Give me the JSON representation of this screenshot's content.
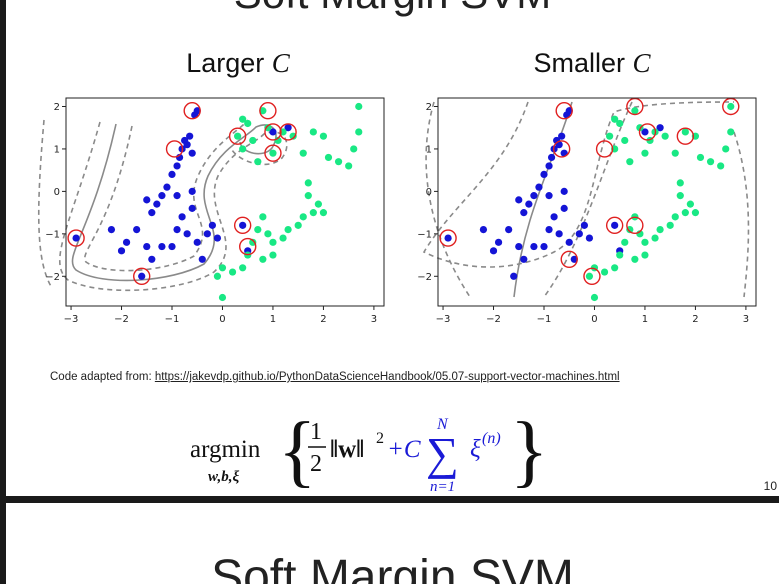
{
  "prev_title": "Soft Margin SVM",
  "panels": [
    {
      "title_text": "Larger ",
      "title_var": "C"
    },
    {
      "title_text": "Smaller ",
      "title_var": "C"
    }
  ],
  "credit": {
    "prefix": "Code adapted from: ",
    "link": "https://jakevdp.github.io/PythonDataScienceHandbook/05.07-support-vector-machines.html"
  },
  "formula": {
    "op": "argmin",
    "sub": "w,b,ξ",
    "frac_num": "1",
    "frac_den": "2",
    "norm": "‖w‖",
    "exp": "2",
    "plus_c": "+C",
    "sum_upper": "N",
    "sum_lower": "n=1",
    "xi": "ξ",
    "xi_sup": "(n)"
  },
  "page_number": "10",
  "next_title": "Soft Margin SVM",
  "colors": {
    "class_a": "#1414d6",
    "class_b": "#19e884",
    "support": "#e02020",
    "boundary": "#8a8a8a",
    "accent": "#1a1ad6"
  },
  "chart_data": [
    {
      "type": "scatter",
      "title": "Larger C",
      "xlim": [
        -3.1,
        3.2
      ],
      "ylim": [
        -2.7,
        2.2
      ],
      "xticks": [
        -3,
        -2,
        -1,
        0,
        1,
        2,
        3
      ],
      "yticks": [
        -2,
        -1,
        0,
        1,
        2
      ],
      "series": [
        {
          "values": [
            [
              -2.9,
              -1.1
            ],
            [
              -2.2,
              -0.9
            ],
            [
              -2.0,
              -1.4
            ],
            [
              -1.9,
              -1.2
            ],
            [
              -1.7,
              -0.9
            ],
            [
              -1.6,
              -2.0
            ],
            [
              -1.5,
              -1.3
            ],
            [
              -1.4,
              -0.5
            ],
            [
              -1.3,
              -0.3
            ],
            [
              -1.2,
              -0.1
            ],
            [
              -1.1,
              0.1
            ],
            [
              -1.0,
              0.4
            ],
            [
              -0.9,
              0.6
            ],
            [
              -0.85,
              0.8
            ],
            [
              -0.8,
              1.0
            ],
            [
              -0.75,
              1.2
            ],
            [
              -0.7,
              1.1
            ],
            [
              -0.65,
              1.3
            ],
            [
              -0.6,
              0.9
            ],
            [
              -0.55,
              1.8
            ],
            [
              -0.5,
              1.9
            ],
            [
              -1.5,
              -0.2
            ],
            [
              -1.2,
              -1.3
            ],
            [
              -1.0,
              -1.3
            ],
            [
              -0.9,
              -0.9
            ],
            [
              -0.8,
              -0.6
            ],
            [
              -0.7,
              -1.0
            ],
            [
              -0.6,
              -0.4
            ],
            [
              -0.5,
              -1.2
            ],
            [
              -0.4,
              -1.6
            ],
            [
              -0.3,
              -1.0
            ],
            [
              -0.2,
              -0.8
            ],
            [
              -0.1,
              -1.1
            ],
            [
              0.4,
              -0.8
            ],
            [
              0.5,
              -1.4
            ],
            [
              1.0,
              1.4
            ],
            [
              1.3,
              1.5
            ],
            [
              -0.9,
              -0.1
            ],
            [
              -0.6,
              0.0
            ],
            [
              -1.4,
              -1.6
            ]
          ]
        },
        {
          "values": [
            [
              0.3,
              1.3
            ],
            [
              0.4,
              1.0
            ],
            [
              0.6,
              1.2
            ],
            [
              0.7,
              0.7
            ],
            [
              0.8,
              1.9
            ],
            [
              0.9,
              1.5
            ],
            [
              1.0,
              0.9
            ],
            [
              1.1,
              1.2
            ],
            [
              1.2,
              1.4
            ],
            [
              1.4,
              1.3
            ],
            [
              1.6,
              0.9
            ],
            [
              1.8,
              1.4
            ],
            [
              2.0,
              1.3
            ],
            [
              2.1,
              0.8
            ],
            [
              2.3,
              0.7
            ],
            [
              2.5,
              0.6
            ],
            [
              2.6,
              1.0
            ],
            [
              2.7,
              1.4
            ],
            [
              2.7,
              2.0
            ],
            [
              1.7,
              0.2
            ],
            [
              1.7,
              -0.1
            ],
            [
              1.9,
              -0.3
            ],
            [
              2.0,
              -0.5
            ],
            [
              1.8,
              -0.5
            ],
            [
              1.6,
              -0.6
            ],
            [
              1.5,
              -0.8
            ],
            [
              1.3,
              -0.9
            ],
            [
              1.2,
              -1.1
            ],
            [
              1.0,
              -1.2
            ],
            [
              0.9,
              -1.0
            ],
            [
              0.8,
              -0.6
            ],
            [
              0.7,
              -0.9
            ],
            [
              0.6,
              -1.2
            ],
            [
              0.5,
              -1.5
            ],
            [
              0.4,
              -1.8
            ],
            [
              0.2,
              -1.9
            ],
            [
              0.0,
              -1.8
            ],
            [
              -0.1,
              -2.0
            ],
            [
              0.0,
              -2.5
            ],
            [
              1.0,
              -1.5
            ],
            [
              0.8,
              -1.6
            ],
            [
              0.5,
              1.6
            ],
            [
              0.4,
              1.7
            ]
          ]
        }
      ],
      "support_vectors": [
        [
          -2.9,
          -1.1
        ],
        [
          -1.6,
          -2.0
        ],
        [
          -0.6,
          1.9
        ],
        [
          -0.95,
          1.0
        ],
        [
          0.4,
          -0.8
        ],
        [
          0.5,
          -1.3
        ],
        [
          0.3,
          1.3
        ],
        [
          0.9,
          1.9
        ],
        [
          1.0,
          1.4
        ],
        [
          1.3,
          1.4
        ],
        [
          1.0,
          0.9
        ]
      ]
    },
    {
      "type": "scatter",
      "title": "Smaller C",
      "xlim": [
        -3.1,
        3.2
      ],
      "ylim": [
        -2.7,
        2.2
      ],
      "xticks": [
        -3,
        -2,
        -1,
        0,
        1,
        2,
        3
      ],
      "yticks": [
        -2,
        -1,
        0,
        1,
        2
      ],
      "series": [
        {
          "values": [
            [
              -2.9,
              -1.1
            ],
            [
              -2.2,
              -0.9
            ],
            [
              -2.0,
              -1.4
            ],
            [
              -1.9,
              -1.2
            ],
            [
              -1.7,
              -0.9
            ],
            [
              -1.6,
              -2.0
            ],
            [
              -1.5,
              -1.3
            ],
            [
              -1.4,
              -0.5
            ],
            [
              -1.3,
              -0.3
            ],
            [
              -1.2,
              -0.1
            ],
            [
              -1.1,
              0.1
            ],
            [
              -1.0,
              0.4
            ],
            [
              -0.9,
              0.6
            ],
            [
              -0.85,
              0.8
            ],
            [
              -0.8,
              1.0
            ],
            [
              -0.75,
              1.2
            ],
            [
              -0.7,
              1.1
            ],
            [
              -0.65,
              1.3
            ],
            [
              -0.6,
              0.9
            ],
            [
              -0.55,
              1.8
            ],
            [
              -0.5,
              1.9
            ],
            [
              -1.5,
              -0.2
            ],
            [
              -1.2,
              -1.3
            ],
            [
              -1.0,
              -1.3
            ],
            [
              -0.9,
              -0.9
            ],
            [
              -0.8,
              -0.6
            ],
            [
              -0.7,
              -1.0
            ],
            [
              -0.6,
              -0.4
            ],
            [
              -0.5,
              -1.2
            ],
            [
              -0.4,
              -1.6
            ],
            [
              -0.3,
              -1.0
            ],
            [
              -0.2,
              -0.8
            ],
            [
              -0.1,
              -1.1
            ],
            [
              0.4,
              -0.8
            ],
            [
              0.5,
              -1.4
            ],
            [
              1.0,
              1.4
            ],
            [
              1.3,
              1.5
            ],
            [
              -0.9,
              -0.1
            ],
            [
              -0.6,
              0.0
            ],
            [
              -1.4,
              -1.6
            ]
          ]
        },
        {
          "values": [
            [
              0.3,
              1.3
            ],
            [
              0.4,
              1.0
            ],
            [
              0.6,
              1.2
            ],
            [
              0.7,
              0.7
            ],
            [
              0.8,
              1.9
            ],
            [
              0.9,
              1.5
            ],
            [
              1.0,
              0.9
            ],
            [
              1.1,
              1.2
            ],
            [
              1.2,
              1.4
            ],
            [
              1.4,
              1.3
            ],
            [
              1.6,
              0.9
            ],
            [
              1.8,
              1.4
            ],
            [
              2.0,
              1.3
            ],
            [
              2.1,
              0.8
            ],
            [
              2.3,
              0.7
            ],
            [
              2.5,
              0.6
            ],
            [
              2.6,
              1.0
            ],
            [
              2.7,
              1.4
            ],
            [
              2.7,
              2.0
            ],
            [
              1.7,
              0.2
            ],
            [
              1.7,
              -0.1
            ],
            [
              1.9,
              -0.3
            ],
            [
              2.0,
              -0.5
            ],
            [
              1.8,
              -0.5
            ],
            [
              1.6,
              -0.6
            ],
            [
              1.5,
              -0.8
            ],
            [
              1.3,
              -0.9
            ],
            [
              1.2,
              -1.1
            ],
            [
              1.0,
              -1.2
            ],
            [
              0.9,
              -1.0
            ],
            [
              0.8,
              -0.6
            ],
            [
              0.7,
              -0.9
            ],
            [
              0.6,
              -1.2
            ],
            [
              0.5,
              -1.5
            ],
            [
              0.4,
              -1.8
            ],
            [
              0.2,
              -1.9
            ],
            [
              0.0,
              -1.8
            ],
            [
              -0.1,
              -2.0
            ],
            [
              0.0,
              -2.5
            ],
            [
              1.0,
              -1.5
            ],
            [
              0.8,
              -1.6
            ],
            [
              0.5,
              1.6
            ],
            [
              0.4,
              1.7
            ]
          ]
        }
      ],
      "support_vectors": [
        [
          -2.9,
          -1.1
        ],
        [
          -0.6,
          1.9
        ],
        [
          -0.65,
          1.0
        ],
        [
          -0.5,
          -1.6
        ],
        [
          0.4,
          -0.8
        ],
        [
          -0.05,
          -2.0
        ],
        [
          0.2,
          1.0
        ],
        [
          0.8,
          2.0
        ],
        [
          1.05,
          1.4
        ],
        [
          1.8,
          1.3
        ],
        [
          2.7,
          2.0
        ],
        [
          0.8,
          -0.8
        ]
      ]
    }
  ]
}
